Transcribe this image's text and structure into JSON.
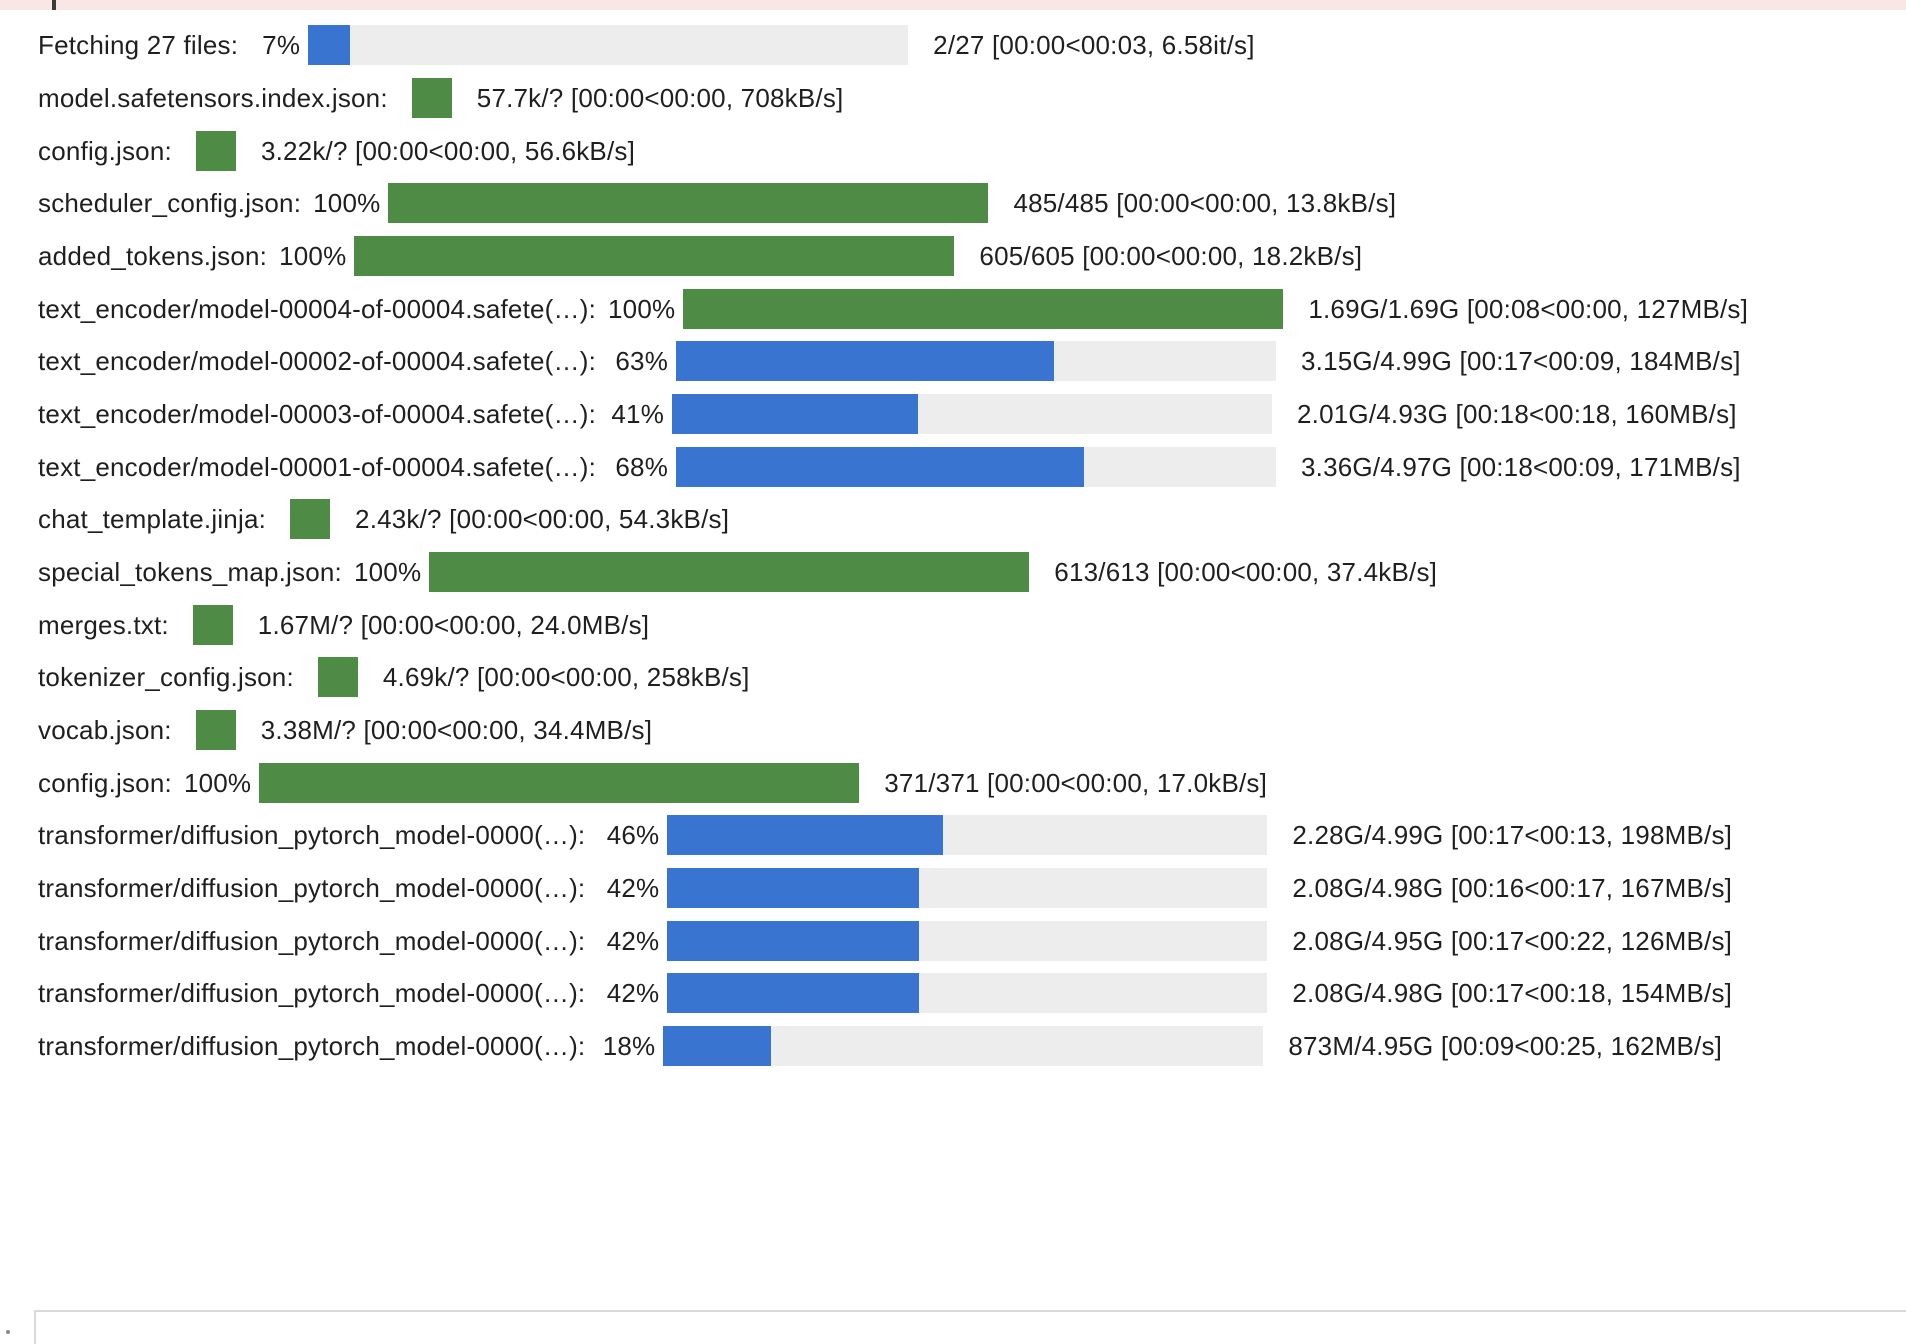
{
  "colors": {
    "complete_bar": "#4e8b45",
    "in_progress_bar": "#3874d0",
    "bar_track": "#ededed",
    "error_banner": "#fbe6e6"
  },
  "progress_rows": [
    {
      "label": "Fetching  27  files:",
      "percent_text": "7%",
      "fraction": 0.07,
      "stats": "2/27  [00:00<00:03,    6.58it/s]"
    },
    {
      "label": "model.safetensors.index.json:",
      "percent_text": "",
      "fraction": 1.0,
      "stats": "57.7k/?  [00:00<00:00,  708kB/s]"
    },
    {
      "label": "config.json:",
      "percent_text": "",
      "fraction": 1.0,
      "stats": "3.22k/?  [00:00<00:00,  56.6kB/s]"
    },
    {
      "label": "scheduler_config.json:",
      "percent_text": "100%",
      "fraction": 1.0,
      "stats": "485/485  [00:00<00:00,  13.8kB/s]"
    },
    {
      "label": "added_tokens.json:",
      "percent_text": "100%",
      "fraction": 1.0,
      "stats": "605/605  [00:00<00:00,  18.2kB/s]"
    },
    {
      "label": "text_encoder/model-00004-of-00004.safete(…):",
      "percent_text": "100%",
      "fraction": 1.0,
      "stats": "1.69G/1.69G  [00:08<00:00,  127MB/s]"
    },
    {
      "label": "text_encoder/model-00002-of-00004.safete(…):",
      "percent_text": "63%",
      "fraction": 0.63,
      "stats": "3.15G/4.99G  [00:17<00:09,  184MB/s]"
    },
    {
      "label": "text_encoder/model-00003-of-00004.safete(…):",
      "percent_text": "41%",
      "fraction": 0.41,
      "stats": "2.01G/4.93G  [00:18<00:18,  160MB/s]"
    },
    {
      "label": "text_encoder/model-00001-of-00004.safete(…):",
      "percent_text": "68%",
      "fraction": 0.68,
      "stats": "3.36G/4.97G  [00:18<00:09,  171MB/s]"
    },
    {
      "label": "chat_template.jinja:",
      "percent_text": "",
      "fraction": 1.0,
      "stats": "2.43k/?  [00:00<00:00,  54.3kB/s]"
    },
    {
      "label": "special_tokens_map.json:",
      "percent_text": "100%",
      "fraction": 1.0,
      "stats": "613/613  [00:00<00:00,  37.4kB/s]"
    },
    {
      "label": "merges.txt:",
      "percent_text": "",
      "fraction": 1.0,
      "stats": "1.67M/?  [00:00<00:00,  24.0MB/s]"
    },
    {
      "label": "tokenizer_config.json:",
      "percent_text": "",
      "fraction": 1.0,
      "stats": "4.69k/?  [00:00<00:00,  258kB/s]"
    },
    {
      "label": "vocab.json:",
      "percent_text": "",
      "fraction": 1.0,
      "stats": "3.38M/?  [00:00<00:00,  34.4MB/s]"
    },
    {
      "label": "config.json:",
      "percent_text": "100%",
      "fraction": 1.0,
      "stats": "371/371  [00:00<00:00,  17.0kB/s]"
    },
    {
      "label": "transformer/diffusion_pytorch_model-0000(…):",
      "percent_text": "46%",
      "fraction": 0.46,
      "stats": "2.28G/4.99G  [00:17<00:13,  198MB/s]"
    },
    {
      "label": "transformer/diffusion_pytorch_model-0000(…):",
      "percent_text": "42%",
      "fraction": 0.42,
      "stats": "2.08G/4.98G  [00:16<00:17,  167MB/s]"
    },
    {
      "label": "transformer/diffusion_pytorch_model-0000(…):",
      "percent_text": "42%",
      "fraction": 0.42,
      "stats": "2.08G/4.95G  [00:17<00:22,  126MB/s]"
    },
    {
      "label": "transformer/diffusion_pytorch_model-0000(…):",
      "percent_text": "42%",
      "fraction": 0.42,
      "stats": "2.08G/4.98G  [00:17<00:18,  154MB/s]"
    },
    {
      "label": "transformer/diffusion_pytorch_model-0000(…):",
      "percent_text": "18%",
      "fraction": 0.18,
      "stats": "873M/4.95G  [00:09<00:25,  162MB/s]"
    }
  ]
}
